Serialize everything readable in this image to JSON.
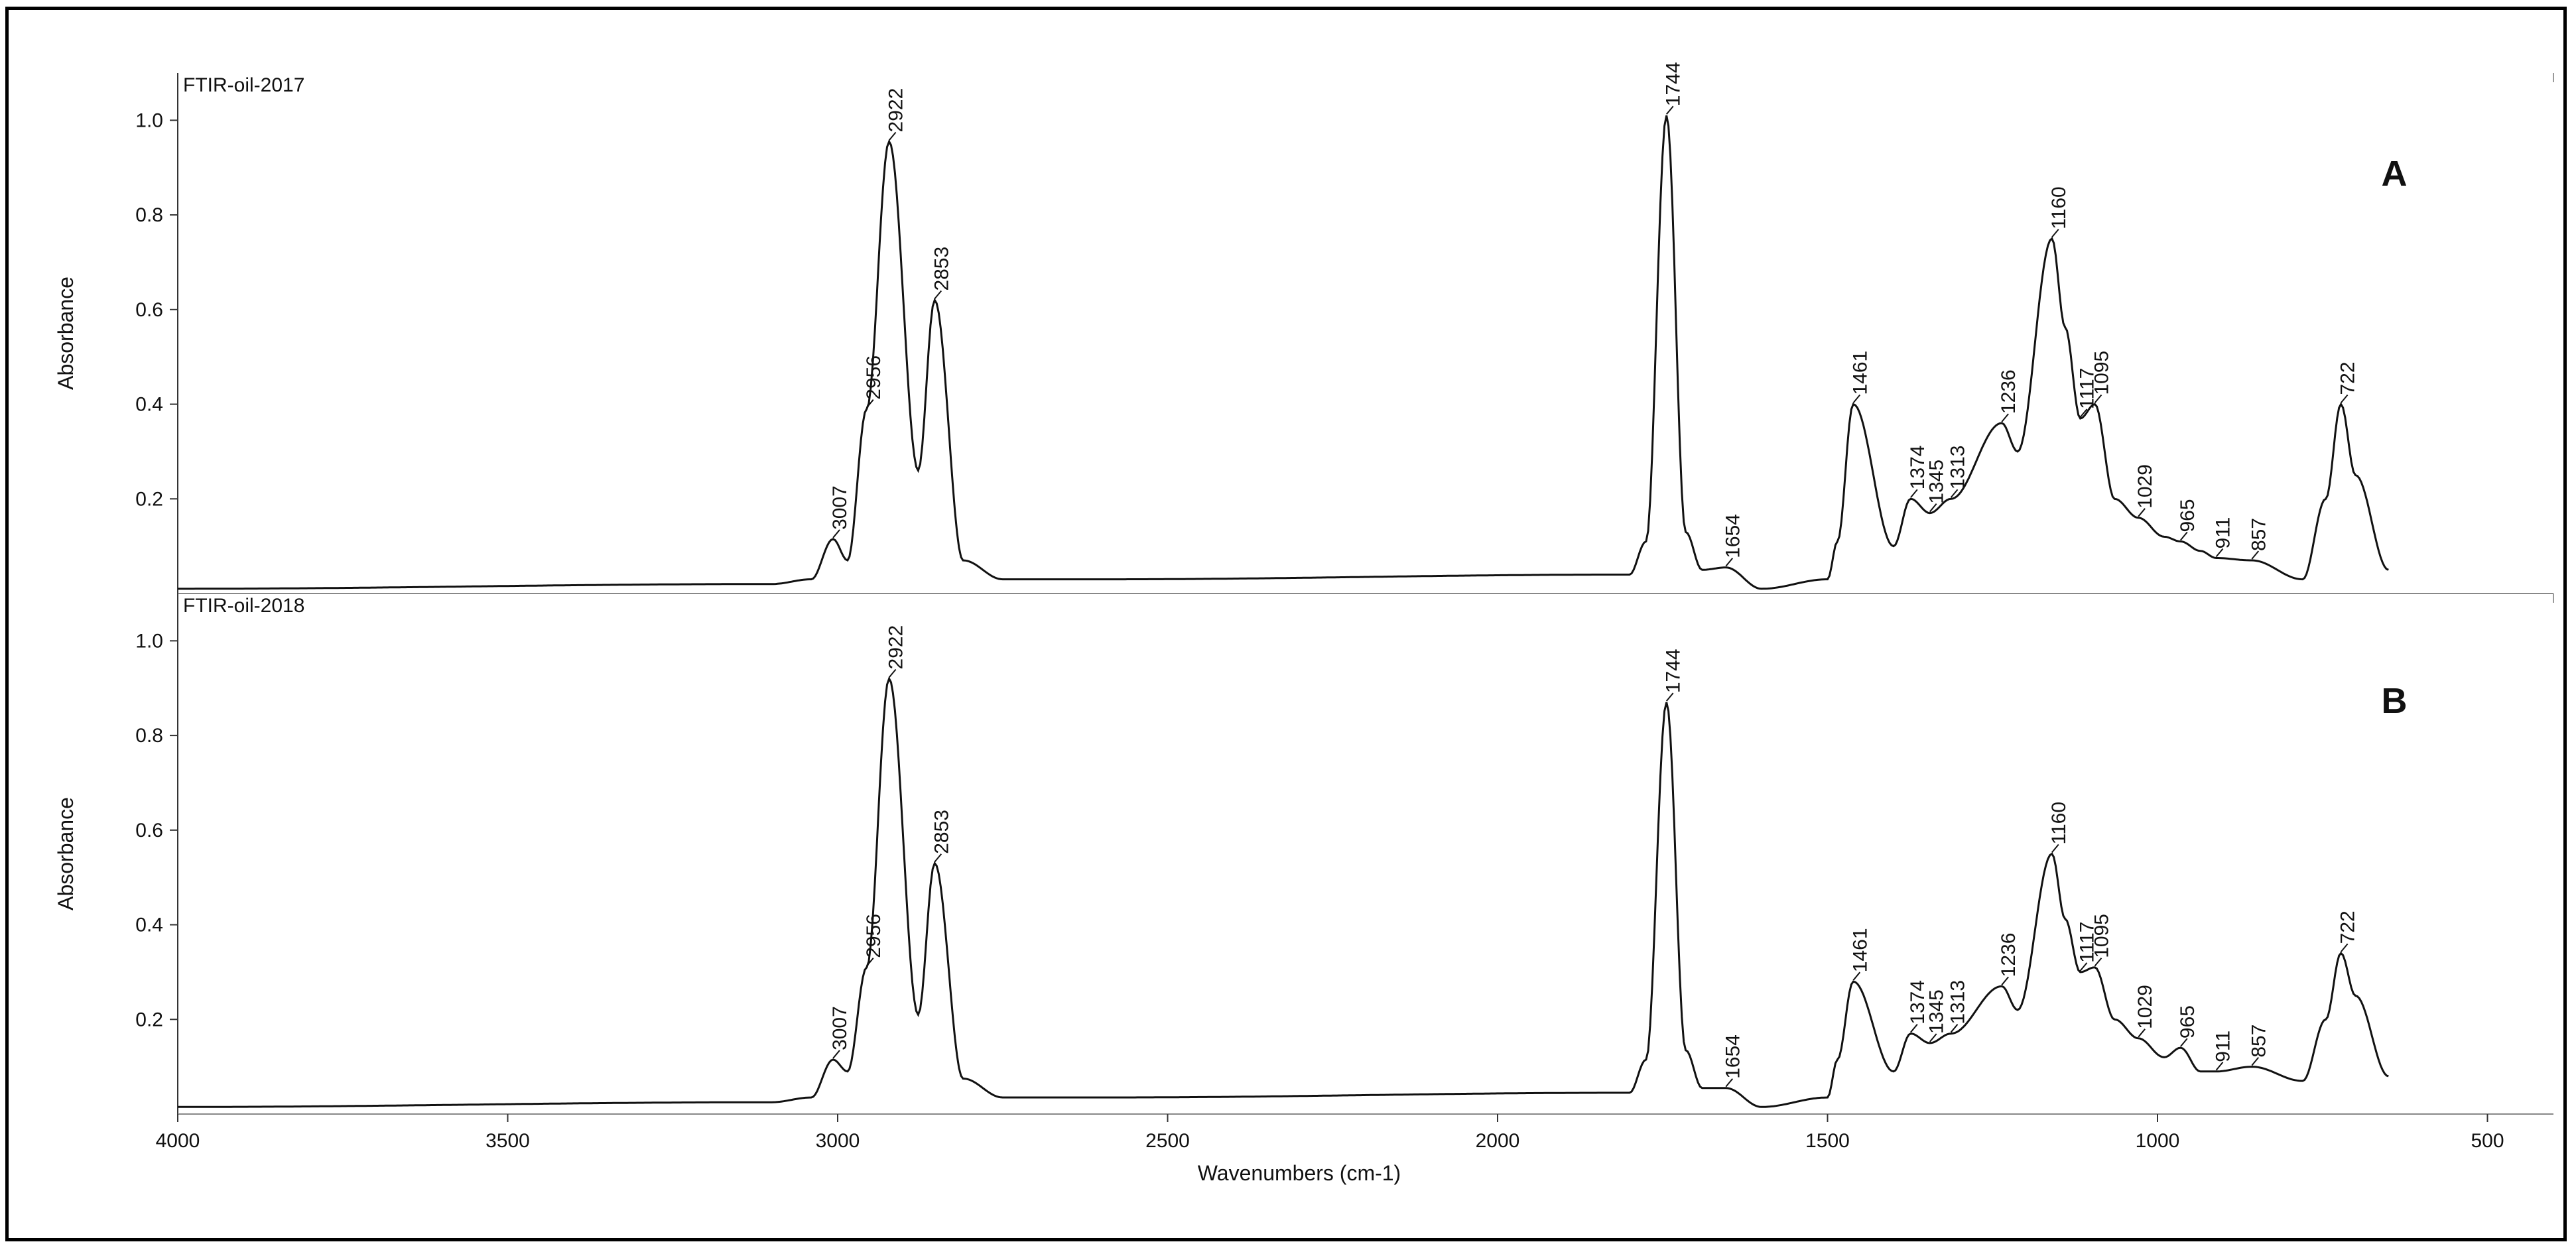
{
  "chart_data": {
    "type": "line",
    "xlabel": "Wavenumbers (cm-1)",
    "xlim": [
      4000,
      400
    ],
    "x_ticks": [
      4000,
      3500,
      3000,
      2500,
      2000,
      1500,
      1000,
      500
    ],
    "panels": [
      {
        "id": "A",
        "panel_label": "A",
        "series_title": "FTIR-oil-2017",
        "ylabel": "Absorbance",
        "ylim": [
          0,
          1.1
        ],
        "y_ticks": [
          0.2,
          0.4,
          0.6,
          0.8,
          1.0
        ],
        "y_tick_labels": [
          "0.2",
          "0.4",
          "0.6",
          "0.8",
          "1.0"
        ],
        "peaks": [
          {
            "label": "3007",
            "x": 3007,
            "y": 0.115
          },
          {
            "label": "2956",
            "x": 2956,
            "y": 0.39
          },
          {
            "label": "2922",
            "x": 2922,
            "y": 0.955
          },
          {
            "label": "2853",
            "x": 2853,
            "y": 0.62
          },
          {
            "label": "1744",
            "x": 1744,
            "y": 1.01
          },
          {
            "label": "1654",
            "x": 1654,
            "y": 0.055
          },
          {
            "label": "1461",
            "x": 1461,
            "y": 0.4
          },
          {
            "label": "1374",
            "x": 1374,
            "y": 0.2
          },
          {
            "label": "1345",
            "x": 1345,
            "y": 0.17
          },
          {
            "label": "1313",
            "x": 1313,
            "y": 0.2
          },
          {
            "label": "1236",
            "x": 1236,
            "y": 0.36
          },
          {
            "label": "1160",
            "x": 1160,
            "y": 0.75
          },
          {
            "label": "1117",
            "x": 1117,
            "y": 0.37
          },
          {
            "label": "1095",
            "x": 1095,
            "y": 0.4
          },
          {
            "label": "1029",
            "x": 1029,
            "y": 0.16
          },
          {
            "label": "965",
            "x": 965,
            "y": 0.11
          },
          {
            "label": "911",
            "x": 911,
            "y": 0.075
          },
          {
            "label": "857",
            "x": 857,
            "y": 0.07
          },
          {
            "label": "722",
            "x": 722,
            "y": 0.4
          }
        ],
        "baseline": 0.01,
        "end": {
          "x": 650,
          "y": 0.05
        },
        "minima": [
          {
            "x": 2985,
            "y": 0.07
          },
          {
            "x": 2878,
            "y": 0.26
          },
          {
            "x": 1400,
            "y": 0.1
          },
          {
            "x": 1212,
            "y": 0.3
          },
          {
            "x": 780,
            "y": 0.03
          }
        ]
      },
      {
        "id": "B",
        "panel_label": "B",
        "series_title": "FTIR-oil-2018",
        "ylabel": "Absorbance",
        "ylim": [
          0,
          1.1
        ],
        "y_ticks": [
          0.2,
          0.4,
          0.6,
          0.8,
          1.0
        ],
        "y_tick_labels": [
          "0.2",
          "0.4",
          "0.6",
          "0.8",
          "1.0"
        ],
        "peaks": [
          {
            "label": "3007",
            "x": 3007,
            "y": 0.115
          },
          {
            "label": "2956",
            "x": 2956,
            "y": 0.31
          },
          {
            "label": "2922",
            "x": 2922,
            "y": 0.92
          },
          {
            "label": "2853",
            "x": 2853,
            "y": 0.53
          },
          {
            "label": "1744",
            "x": 1744,
            "y": 0.87
          },
          {
            "label": "1654",
            "x": 1654,
            "y": 0.055
          },
          {
            "label": "1461",
            "x": 1461,
            "y": 0.28
          },
          {
            "label": "1374",
            "x": 1374,
            "y": 0.17
          },
          {
            "label": "1345",
            "x": 1345,
            "y": 0.15
          },
          {
            "label": "1313",
            "x": 1313,
            "y": 0.17
          },
          {
            "label": "1236",
            "x": 1236,
            "y": 0.27
          },
          {
            "label": "1160",
            "x": 1160,
            "y": 0.55
          },
          {
            "label": "1117",
            "x": 1117,
            "y": 0.3
          },
          {
            "label": "1095",
            "x": 1095,
            "y": 0.31
          },
          {
            "label": "1029",
            "x": 1029,
            "y": 0.16
          },
          {
            "label": "965",
            "x": 965,
            "y": 0.14
          },
          {
            "label": "911",
            "x": 911,
            "y": 0.09
          },
          {
            "label": "857",
            "x": 857,
            "y": 0.1
          },
          {
            "label": "722",
            "x": 722,
            "y": 0.34
          }
        ],
        "baseline": 0.015,
        "end": {
          "x": 650,
          "y": 0.08
        },
        "minima": [
          {
            "x": 2985,
            "y": 0.09
          },
          {
            "x": 2878,
            "y": 0.21
          },
          {
            "x": 1400,
            "y": 0.09
          },
          {
            "x": 1212,
            "y": 0.22
          },
          {
            "x": 780,
            "y": 0.07
          }
        ]
      }
    ]
  }
}
